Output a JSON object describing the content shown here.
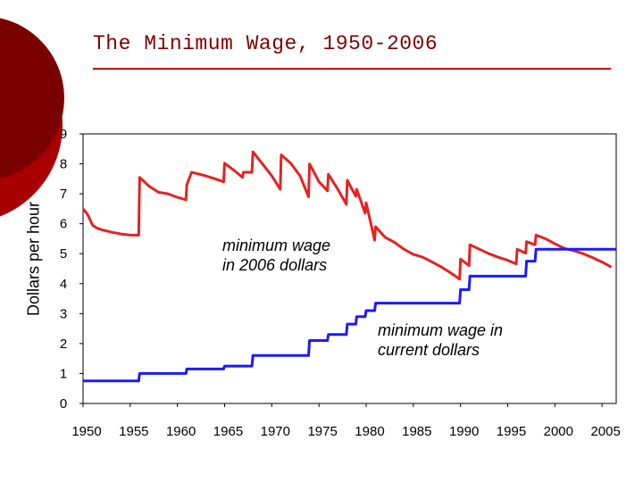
{
  "slide": {
    "colors": {
      "accent_dark": "#7a0000",
      "accent_mid": "#a80000",
      "title": "#800000",
      "rule": "#c00000"
    }
  },
  "chart_data": {
    "type": "line",
    "title": "The Minimum Wage, 1950-2006",
    "xlabel": "",
    "ylabel": "Dollars per hour",
    "xlim": [
      1950,
      2006.5
    ],
    "ylim": [
      0,
      9
    ],
    "x_ticks": [
      1950,
      1955,
      1960,
      1965,
      1970,
      1975,
      1980,
      1985,
      1990,
      1995,
      2000,
      2005
    ],
    "y_ticks": [
      0,
      1,
      2,
      3,
      4,
      5,
      6,
      7,
      8,
      9
    ],
    "grid": false,
    "series": [
      {
        "name": "minimum wage in 2006 dollars",
        "color": "#e32222",
        "points": [
          [
            1950,
            6.5
          ],
          [
            1950.5,
            6.3
          ],
          [
            1951,
            5.95
          ],
          [
            1951.5,
            5.85
          ],
          [
            1952,
            5.8
          ],
          [
            1953,
            5.72
          ],
          [
            1954,
            5.66
          ],
          [
            1955,
            5.62
          ],
          [
            1955.9,
            5.62
          ],
          [
            1956,
            7.55
          ],
          [
            1957,
            7.25
          ],
          [
            1958,
            7.05
          ],
          [
            1959,
            7.0
          ],
          [
            1960,
            6.88
          ],
          [
            1960.9,
            6.8
          ],
          [
            1961,
            7.3
          ],
          [
            1961.5,
            7.72
          ],
          [
            1962,
            7.68
          ],
          [
            1963,
            7.6
          ],
          [
            1964,
            7.5
          ],
          [
            1964.9,
            7.4
          ],
          [
            1965,
            8.02
          ],
          [
            1966,
            7.78
          ],
          [
            1966.9,
            7.55
          ],
          [
            1967,
            7.72
          ],
          [
            1967.9,
            7.72
          ],
          [
            1968,
            8.4
          ],
          [
            1969,
            8.0
          ],
          [
            1970,
            7.6
          ],
          [
            1970.9,
            7.15
          ],
          [
            1971,
            8.3
          ],
          [
            1972,
            8.02
          ],
          [
            1973,
            7.6
          ],
          [
            1973.9,
            6.9
          ],
          [
            1974,
            8.0
          ],
          [
            1975,
            7.4
          ],
          [
            1975.9,
            7.1
          ],
          [
            1976,
            7.65
          ],
          [
            1977,
            7.15
          ],
          [
            1977.9,
            6.65
          ],
          [
            1978,
            7.45
          ],
          [
            1978.9,
            6.92
          ],
          [
            1979,
            7.15
          ],
          [
            1979.9,
            6.35
          ],
          [
            1980,
            6.7
          ],
          [
            1980.9,
            5.45
          ],
          [
            1981,
            5.9
          ],
          [
            1982,
            5.55
          ],
          [
            1983,
            5.38
          ],
          [
            1984,
            5.15
          ],
          [
            1985,
            4.98
          ],
          [
            1986,
            4.88
          ],
          [
            1987,
            4.72
          ],
          [
            1988,
            4.55
          ],
          [
            1989,
            4.35
          ],
          [
            1989.9,
            4.15
          ],
          [
            1990,
            4.82
          ],
          [
            1990.9,
            4.6
          ],
          [
            1991,
            5.3
          ],
          [
            1992,
            5.15
          ],
          [
            1993,
            5.0
          ],
          [
            1994,
            4.88
          ],
          [
            1995,
            4.78
          ],
          [
            1995.9,
            4.66
          ],
          [
            1996,
            5.15
          ],
          [
            1996.9,
            5.02
          ],
          [
            1997,
            5.4
          ],
          [
            1997.9,
            5.3
          ],
          [
            1998,
            5.62
          ],
          [
            1999,
            5.5
          ],
          [
            2000,
            5.33
          ],
          [
            2001,
            5.18
          ],
          [
            2002,
            5.1
          ],
          [
            2003,
            5.0
          ],
          [
            2004,
            4.87
          ],
          [
            2005,
            4.72
          ],
          [
            2006,
            4.55
          ]
        ]
      },
      {
        "name": "minimum wage in current dollars",
        "color": "#1a1aff",
        "points": [
          [
            1950,
            0.75
          ],
          [
            1955.9,
            0.75
          ],
          [
            1956,
            1.0
          ],
          [
            1960.9,
            1.0
          ],
          [
            1961,
            1.15
          ],
          [
            1964.9,
            1.15
          ],
          [
            1965,
            1.25
          ],
          [
            1967.9,
            1.25
          ],
          [
            1968,
            1.6
          ],
          [
            1973.9,
            1.6
          ],
          [
            1974,
            2.1
          ],
          [
            1974.9,
            2.1
          ],
          [
            1975,
            2.1
          ],
          [
            1975.9,
            2.1
          ],
          [
            1976,
            2.3
          ],
          [
            1977.9,
            2.3
          ],
          [
            1978,
            2.65
          ],
          [
            1978.9,
            2.65
          ],
          [
            1979,
            2.9
          ],
          [
            1979.9,
            2.9
          ],
          [
            1980,
            3.1
          ],
          [
            1980.9,
            3.1
          ],
          [
            1981,
            3.35
          ],
          [
            1989.9,
            3.35
          ],
          [
            1990,
            3.8
          ],
          [
            1990.9,
            3.8
          ],
          [
            1991,
            4.25
          ],
          [
            1996.9,
            4.25
          ],
          [
            1997,
            4.75
          ],
          [
            1997.9,
            4.75
          ],
          [
            1998,
            5.15
          ],
          [
            2006.5,
            5.15
          ]
        ]
      }
    ],
    "annotations": {
      "real": "minimum wage\nin 2006 dollars",
      "nominal": "minimum wage in\ncurrent dollars"
    }
  }
}
